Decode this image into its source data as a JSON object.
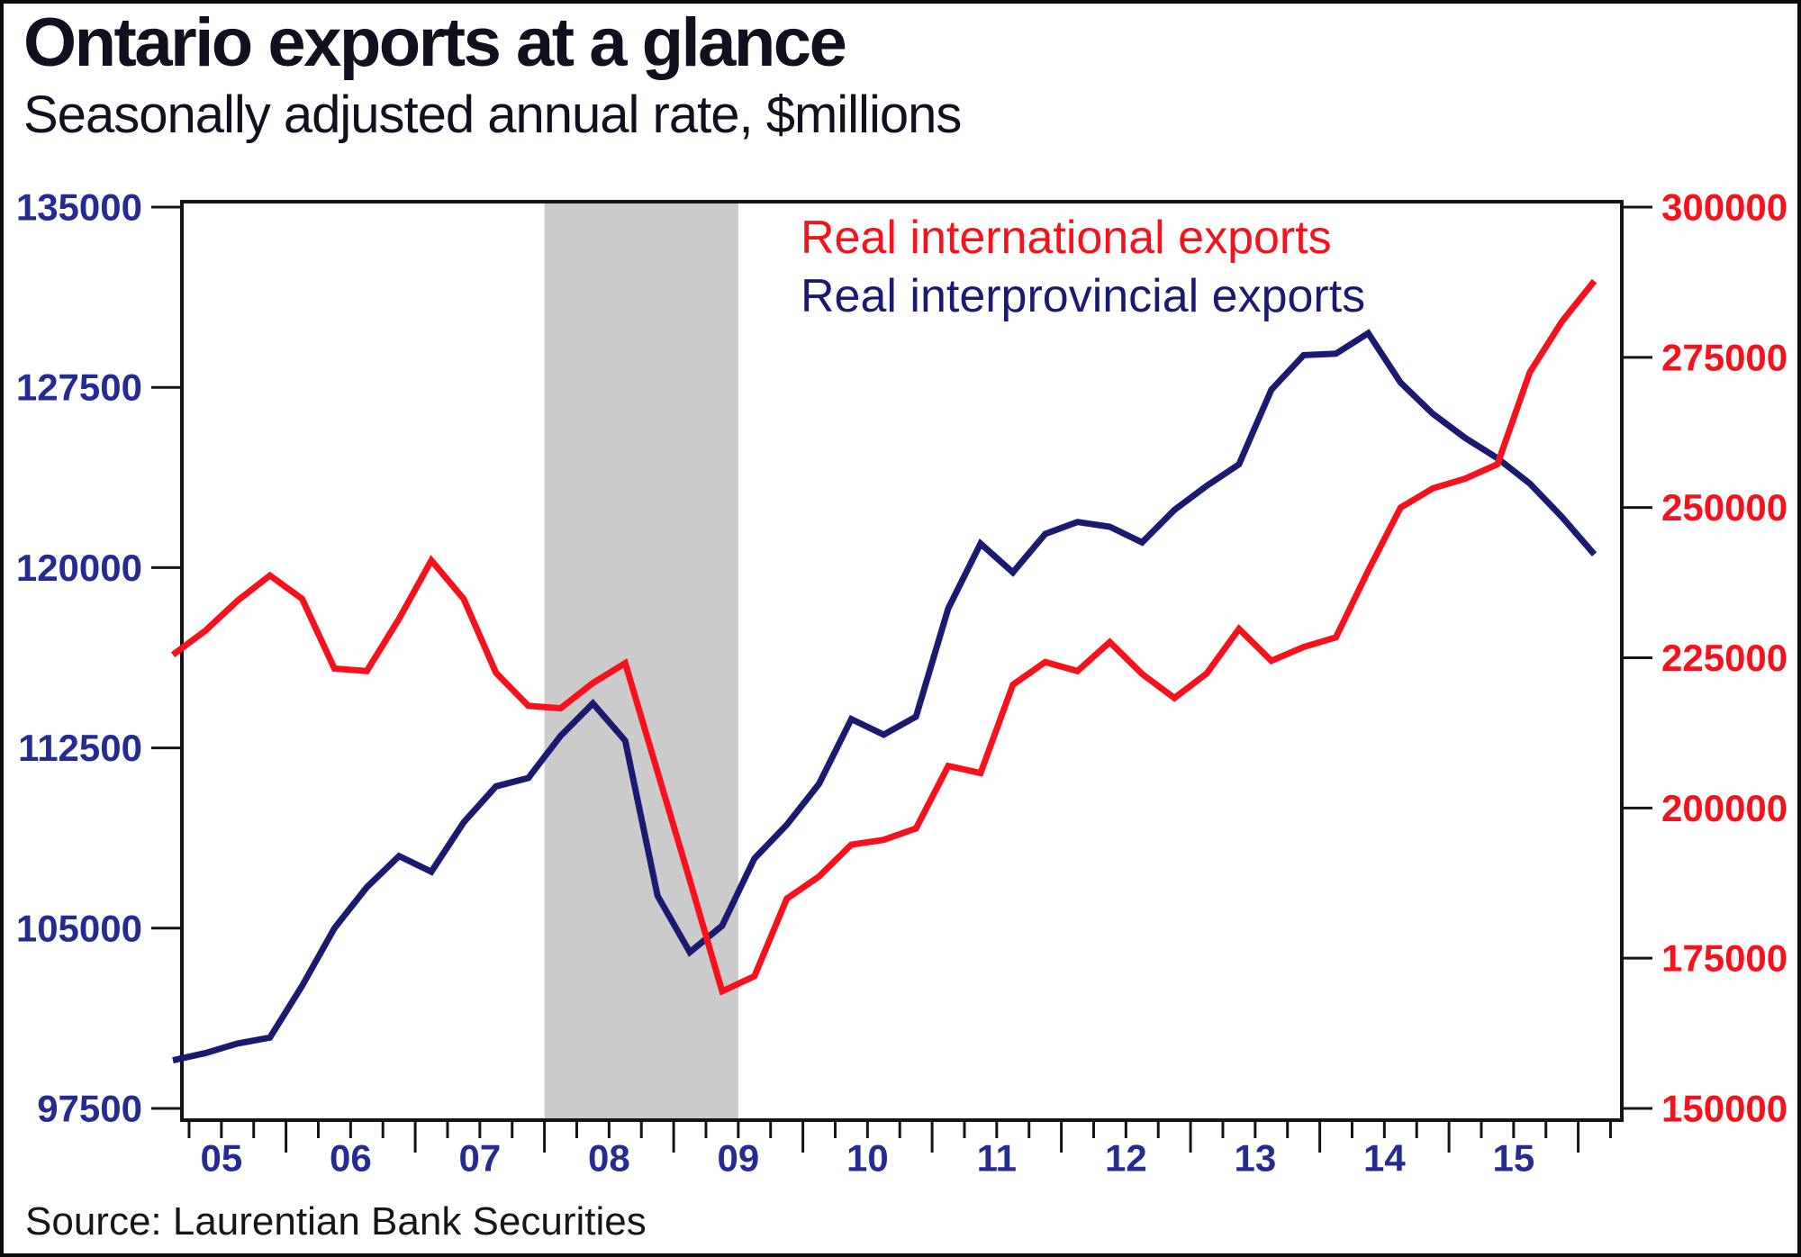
{
  "title": "Ontario exports at a glance",
  "subtitle": "Seasonally adjusted annual rate, $millions",
  "source": "Source: Laurentian Bank Securities",
  "legend": {
    "international": {
      "label": "Real international exports",
      "color": "#f8111c"
    },
    "interprovincial": {
      "label": "Real interprovincial exports",
      "color": "#1a1a70"
    }
  },
  "colors": {
    "plot_border": "#141414",
    "axis_tick": "#141414",
    "left_axis_labels": "#262a93",
    "right_axis_labels": "#f8111c",
    "x_axis_labels": "#262a93",
    "recession_band": "#cbcbcb",
    "background": "#ffffff"
  },
  "chart_data": {
    "type": "line",
    "title": "Ontario exports at a glance",
    "subtitle": "Seasonally adjusted annual rate, $millions",
    "grid": false,
    "legend_position": "top-right-inside",
    "x_quarters": [
      "2005Q1",
      "2005Q2",
      "2005Q3",
      "2005Q4",
      "2006Q1",
      "2006Q2",
      "2006Q3",
      "2006Q4",
      "2007Q1",
      "2007Q2",
      "2007Q3",
      "2007Q4",
      "2008Q1",
      "2008Q2",
      "2008Q3",
      "2008Q4",
      "2009Q1",
      "2009Q2",
      "2009Q3",
      "2009Q4",
      "2010Q1",
      "2010Q2",
      "2010Q3",
      "2010Q4",
      "2011Q1",
      "2011Q2",
      "2011Q3",
      "2011Q4",
      "2012Q1",
      "2012Q2",
      "2012Q3",
      "2012Q4",
      "2013Q1",
      "2013Q2",
      "2013Q3",
      "2013Q4",
      "2014Q1",
      "2014Q2",
      "2014Q3",
      "2014Q4",
      "2015Q1",
      "2015Q2",
      "2015Q3",
      "2015Q4",
      "2016Q1"
    ],
    "x_year_labels": [
      "05",
      "06",
      "07",
      "08",
      "09",
      "10",
      "11",
      "12",
      "13",
      "14",
      "15"
    ],
    "x_year_start": 2005,
    "left_axis": {
      "min": 97500,
      "max": 135000,
      "ticks": [
        135000,
        127500,
        120000,
        112500,
        105000,
        97500
      ],
      "label_color": "#262a93"
    },
    "right_axis": {
      "min": 150000,
      "max": 300000,
      "ticks": [
        300000,
        275000,
        250000,
        225000,
        200000,
        175000,
        150000
      ],
      "label_color": "#f8111c"
    },
    "recession_band": {
      "from_year": 2008.0,
      "to_year": 2009.5,
      "color": "#cbcbcb"
    },
    "series": [
      {
        "name": "Real interprovincial exports",
        "axis": "left",
        "color": "#1a1a70",
        "values": [
          99500,
          99800,
          100200,
          100450,
          102600,
          105000,
          106700,
          108000,
          107350,
          109400,
          110900,
          111250,
          113000,
          114350,
          112800,
          106350,
          104000,
          105100,
          107900,
          109300,
          111000,
          113700,
          113050,
          113800,
          118300,
          121000,
          119800,
          121400,
          121900,
          121700,
          121050,
          122400,
          123400,
          124300,
          127400,
          128840,
          128900,
          129750,
          127700,
          126400,
          125400,
          124550,
          123500,
          122100,
          120550
        ]
      },
      {
        "name": "Real international exports",
        "axis": "right",
        "color": "#f8111c",
        "values": [
          225500,
          229500,
          234500,
          238700,
          234800,
          223200,
          222800,
          231500,
          241200,
          234800,
          222500,
          217000,
          216600,
          220800,
          224100,
          206000,
          188000,
          169500,
          172000,
          184900,
          188600,
          193900,
          194700,
          196600,
          207000,
          205800,
          220500,
          224300,
          222800,
          227600,
          222300,
          218300,
          222400,
          229800,
          224500,
          226800,
          228400,
          239500,
          250000,
          253200,
          254800,
          257200,
          272500,
          281000,
          287700
        ]
      }
    ]
  }
}
